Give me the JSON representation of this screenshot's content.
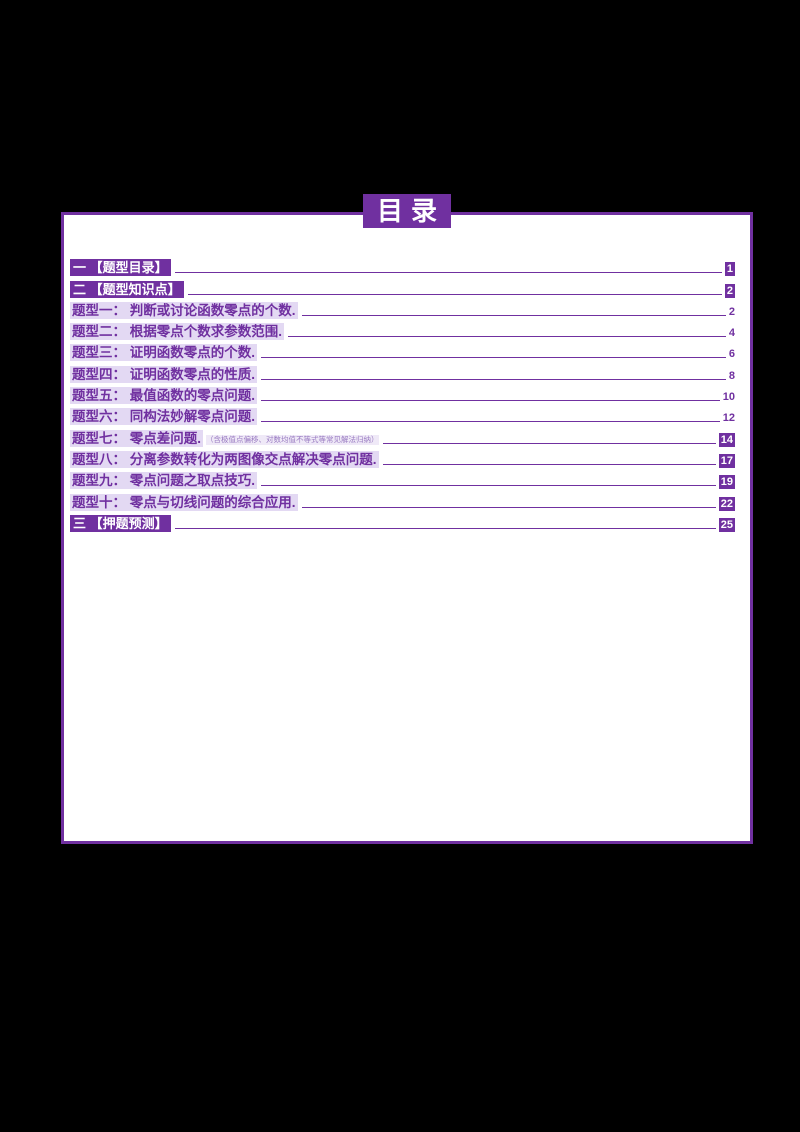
{
  "colors": {
    "accent": "#7030a0",
    "entry_highlight": "#e3d9f3",
    "page_background": "#ffffff",
    "canvas_background": "#000000"
  },
  "page": {
    "title": "目录"
  },
  "toc": [
    {
      "label": "一 【题型目录】",
      "page": "1",
      "style": "header",
      "page_style": "block"
    },
    {
      "label": "二 【题型知识点】",
      "page": "2",
      "style": "header",
      "page_style": "block"
    },
    {
      "label": "题型一： 判断或讨论函数零点的个数.",
      "page": "2",
      "style": "entry",
      "page_style": "plain"
    },
    {
      "label": "题型二： 根据零点个数求参数范围.",
      "page": "4",
      "style": "entry",
      "page_style": "plain"
    },
    {
      "label": "题型三： 证明函数零点的个数.",
      "page": "6",
      "style": "entry",
      "page_style": "plain"
    },
    {
      "label": "题型四： 证明函数零点的性质.",
      "page": "8",
      "style": "entry",
      "page_style": "plain"
    },
    {
      "label": "题型五： 最值函数的零点问题.",
      "page": "10",
      "style": "entry",
      "page_style": "plain"
    },
    {
      "label": "题型六： 同构法妙解零点问题.",
      "page": "12",
      "style": "entry",
      "page_style": "plain"
    },
    {
      "label": "题型七： 零点差问题.",
      "page": "14",
      "style": "entry",
      "page_style": "block",
      "annotation": "（含极值点偏移、对数均值不等式等常见解法归纳）"
    },
    {
      "label": "题型八： 分离参数转化为两图像交点解决零点问题.",
      "page": "17",
      "style": "entry",
      "page_style": "block"
    },
    {
      "label": "题型九： 零点问题之取点技巧.",
      "page": "19",
      "style": "entry",
      "page_style": "block"
    },
    {
      "label": "题型十： 零点与切线问题的综合应用.",
      "page": "22",
      "style": "entry",
      "page_style": "block"
    },
    {
      "label": "三 【押题预测】",
      "page": "25",
      "style": "header",
      "page_style": "block"
    }
  ]
}
